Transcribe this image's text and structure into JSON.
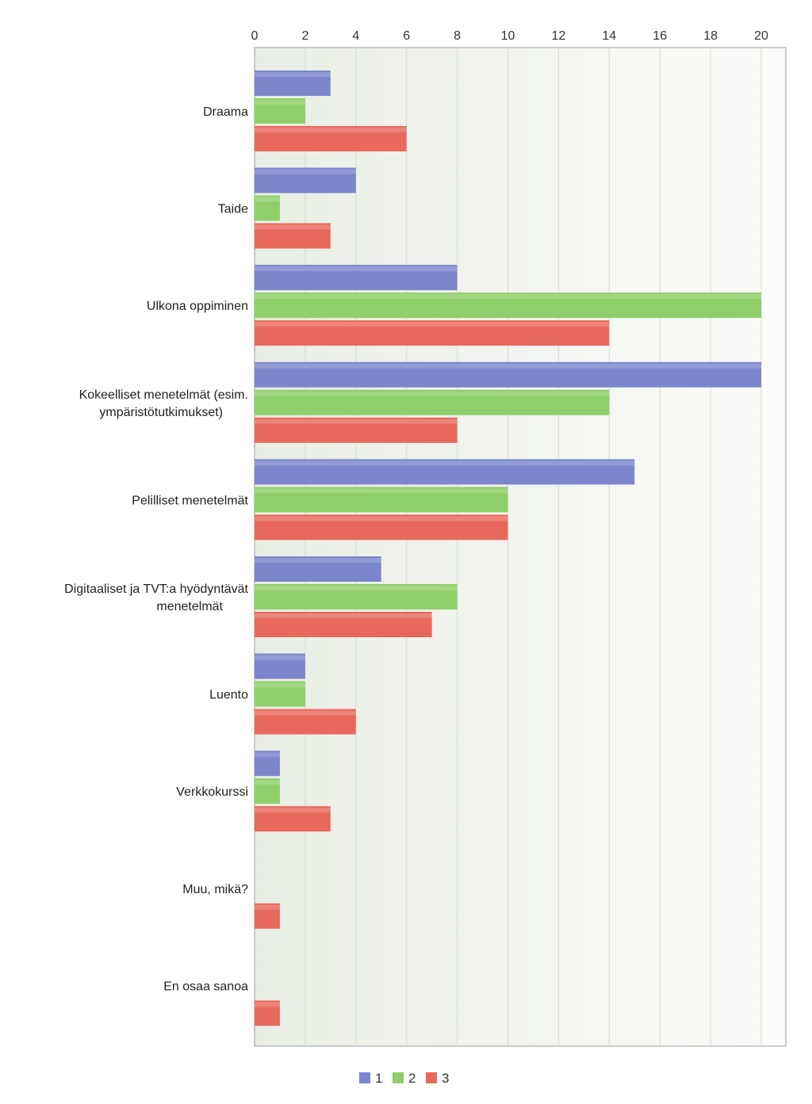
{
  "chart_data": {
    "type": "bar",
    "orientation": "horizontal",
    "categories": [
      [
        "Draama"
      ],
      [
        "Taide"
      ],
      [
        "Ulkona oppiminen"
      ],
      [
        "Kokeelliset menetelmät (esim.",
        "ympäristötutkimukset)"
      ],
      [
        "Pelilliset menetelmät"
      ],
      [
        "Digitaaliset ja TVT:a hyödyntävät",
        "menetelmät"
      ],
      [
        "Luento"
      ],
      [
        "Verkkokurssi"
      ],
      [
        "Muu, mikä?"
      ],
      [
        "En osaa sanoa"
      ]
    ],
    "series": [
      {
        "name": "1",
        "color": "#7b86cc",
        "values": [
          3,
          4,
          8,
          20,
          15,
          5,
          2,
          1,
          0,
          0
        ]
      },
      {
        "name": "2",
        "color": "#8ecf6a",
        "values": [
          2,
          1,
          20,
          14,
          10,
          8,
          2,
          1,
          0,
          0
        ]
      },
      {
        "name": "3",
        "color": "#e8695c",
        "values": [
          6,
          3,
          14,
          8,
          10,
          7,
          4,
          3,
          1,
          1
        ]
      }
    ],
    "xlim": [
      0,
      21
    ],
    "ticks": [
      0,
      2,
      4,
      6,
      8,
      10,
      12,
      14,
      16,
      18,
      20
    ],
    "grid": true,
    "axis_position": "top",
    "legend_position": "bottom-center",
    "title": "",
    "xlabel": "",
    "ylabel": ""
  }
}
